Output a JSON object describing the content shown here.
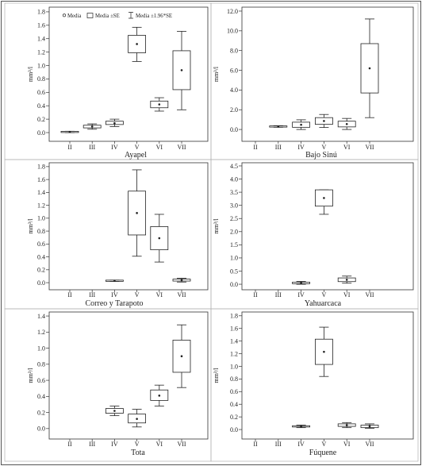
{
  "chart_data": [
    {
      "type": "box",
      "title": "Ayapel",
      "ylabel": "mm³/l",
      "categories": [
        "II",
        "III",
        "IV",
        "V",
        "VI",
        "VII"
      ],
      "yticks": [
        "0.0",
        "0.2",
        "0.4",
        "0.6",
        "0.8",
        "1.0",
        "1.2",
        "1.4",
        "1.6",
        "1.8"
      ],
      "ylim": [
        -0.13,
        1.87
      ],
      "grid": false,
      "legend": {
        "position": "top",
        "entries": [
          "Media",
          "Media ±SE",
          "Media ±1.96*SE"
        ]
      },
      "points": [
        {
          "mean": 0.01,
          "se": [
            0.005,
            0.015
          ],
          "ci": [
            0.0,
            0.02
          ]
        },
        {
          "mean": 0.09,
          "se": [
            0.07,
            0.11
          ],
          "ci": [
            0.05,
            0.13
          ]
        },
        {
          "mean": 0.14,
          "se": [
            0.12,
            0.17
          ],
          "ci": [
            0.09,
            0.2
          ]
        },
        {
          "mean": 1.32,
          "se": [
            1.19,
            1.45
          ],
          "ci": [
            1.06,
            1.57
          ]
        },
        {
          "mean": 0.42,
          "se": [
            0.37,
            0.47
          ],
          "ci": [
            0.32,
            0.52
          ]
        },
        {
          "mean": 0.93,
          "se": [
            0.64,
            1.22
          ],
          "ci": [
            0.34,
            1.51
          ]
        }
      ]
    },
    {
      "type": "box",
      "title": "Bajo Sinú",
      "ylabel": "mm³/l",
      "categories": [
        "II",
        "III",
        "IV",
        "V",
        "VI",
        "VII"
      ],
      "yticks": [
        "0.0",
        "2.0",
        "4.0",
        "6.0",
        "8.0",
        "10.0",
        "12.0"
      ],
      "ylim": [
        -1.2,
        12.4
      ],
      "grid": false,
      "points": [
        null,
        {
          "mean": 0.3,
          "se": [
            0.26,
            0.34
          ],
          "ci": [
            0.22,
            0.38
          ]
        },
        {
          "mean": 0.48,
          "se": [
            0.22,
            0.74
          ],
          "ci": [
            0.0,
            0.98
          ]
        },
        {
          "mean": 0.86,
          "se": [
            0.52,
            1.2
          ],
          "ci": [
            0.2,
            1.52
          ]
        },
        {
          "mean": 0.55,
          "se": [
            0.26,
            0.84
          ],
          "ci": [
            0.0,
            1.12
          ]
        },
        {
          "mean": 6.2,
          "se": [
            3.7,
            8.7
          ],
          "ci": [
            1.2,
            11.2
          ]
        }
      ]
    },
    {
      "type": "box",
      "title": "Correo y Tarapoto",
      "ylabel": "mm³/l",
      "categories": [
        "II",
        "III",
        "IV",
        "V",
        "VI",
        "VII"
      ],
      "yticks": [
        "0.0",
        "0.2",
        "0.4",
        "0.6",
        "0.8",
        "1.0",
        "1.2",
        "1.4",
        "1.6",
        "1.8"
      ],
      "ylim": [
        -0.11,
        1.86
      ],
      "grid": false,
      "points": [
        null,
        null,
        {
          "mean": 0.03,
          "se": [
            0.025,
            0.035
          ],
          "ci": [
            0.02,
            0.04
          ]
        },
        {
          "mean": 1.08,
          "se": [
            0.74,
            1.42
          ],
          "ci": [
            0.41,
            1.75
          ]
        },
        {
          "mean": 0.69,
          "se": [
            0.51,
            0.87
          ],
          "ci": [
            0.32,
            1.06
          ]
        },
        {
          "mean": 0.04,
          "se": [
            0.025,
            0.055
          ],
          "ci": [
            0.01,
            0.07
          ]
        }
      ]
    },
    {
      "type": "box",
      "title": "Yahuarcaca",
      "ylabel": "mm³/l",
      "categories": [
        "II",
        "III",
        "IV",
        "V",
        "VI",
        "VII"
      ],
      "yticks": [
        "0.0",
        "0.5",
        "1.0",
        "1.5",
        "2.0",
        "2.5",
        "3.0",
        "3.5",
        "4.0",
        "4.5"
      ],
      "ylim": [
        -0.21,
        4.62
      ],
      "grid": false,
      "points": [
        null,
        null,
        {
          "mean": 0.05,
          "se": [
            0.02,
            0.08
          ],
          "ci": [
            0.0,
            0.11
          ]
        },
        {
          "mean": 3.28,
          "se": [
            2.97,
            3.59
          ],
          "ci": [
            2.66,
            3.59
          ]
        },
        {
          "mean": 0.17,
          "se": [
            0.1,
            0.24
          ],
          "ci": [
            0.04,
            0.31
          ]
        },
        null
      ]
    },
    {
      "type": "box",
      "title": "Tota",
      "ylabel": "mm³/l",
      "categories": [
        "II",
        "III",
        "IV",
        "V",
        "VI",
        "VII"
      ],
      "yticks": [
        "0.0",
        "0.2",
        "0.4",
        "0.6",
        "0.8",
        "1.0",
        "1.2",
        "1.4"
      ],
      "ylim": [
        -0.13,
        1.45
      ],
      "grid": false,
      "points": [
        null,
        null,
        {
          "mean": 0.22,
          "se": [
            0.19,
            0.25
          ],
          "ci": [
            0.16,
            0.28
          ]
        },
        {
          "mean": 0.12,
          "se": [
            0.07,
            0.18
          ],
          "ci": [
            0.02,
            0.24
          ]
        },
        {
          "mean": 0.41,
          "se": [
            0.35,
            0.48
          ],
          "ci": [
            0.28,
            0.54
          ]
        },
        {
          "mean": 0.9,
          "se": [
            0.7,
            1.1
          ],
          "ci": [
            0.51,
            1.29
          ]
        }
      ]
    },
    {
      "type": "box",
      "title": "Fúquene",
      "ylabel": "mm³/l",
      "categories": [
        "II",
        "III",
        "IV",
        "V",
        "VI",
        "VII"
      ],
      "yticks": [
        "0.0",
        "0.2",
        "0.4",
        "0.6",
        "0.8",
        "1.0",
        "1.2",
        "1.4",
        "1.6",
        "1.8"
      ],
      "ylim": [
        -0.15,
        1.86
      ],
      "grid": false,
      "points": [
        null,
        null,
        {
          "mean": 0.05,
          "se": [
            0.04,
            0.06
          ],
          "ci": [
            0.03,
            0.07
          ]
        },
        {
          "mean": 1.23,
          "se": [
            1.03,
            1.43
          ],
          "ci": [
            0.84,
            1.62
          ]
        },
        {
          "mean": 0.07,
          "se": [
            0.05,
            0.09
          ],
          "ci": [
            0.03,
            0.11
          ]
        },
        {
          "mean": 0.05,
          "se": [
            0.03,
            0.07
          ],
          "ci": [
            0.02,
            0.09
          ]
        }
      ]
    }
  ]
}
